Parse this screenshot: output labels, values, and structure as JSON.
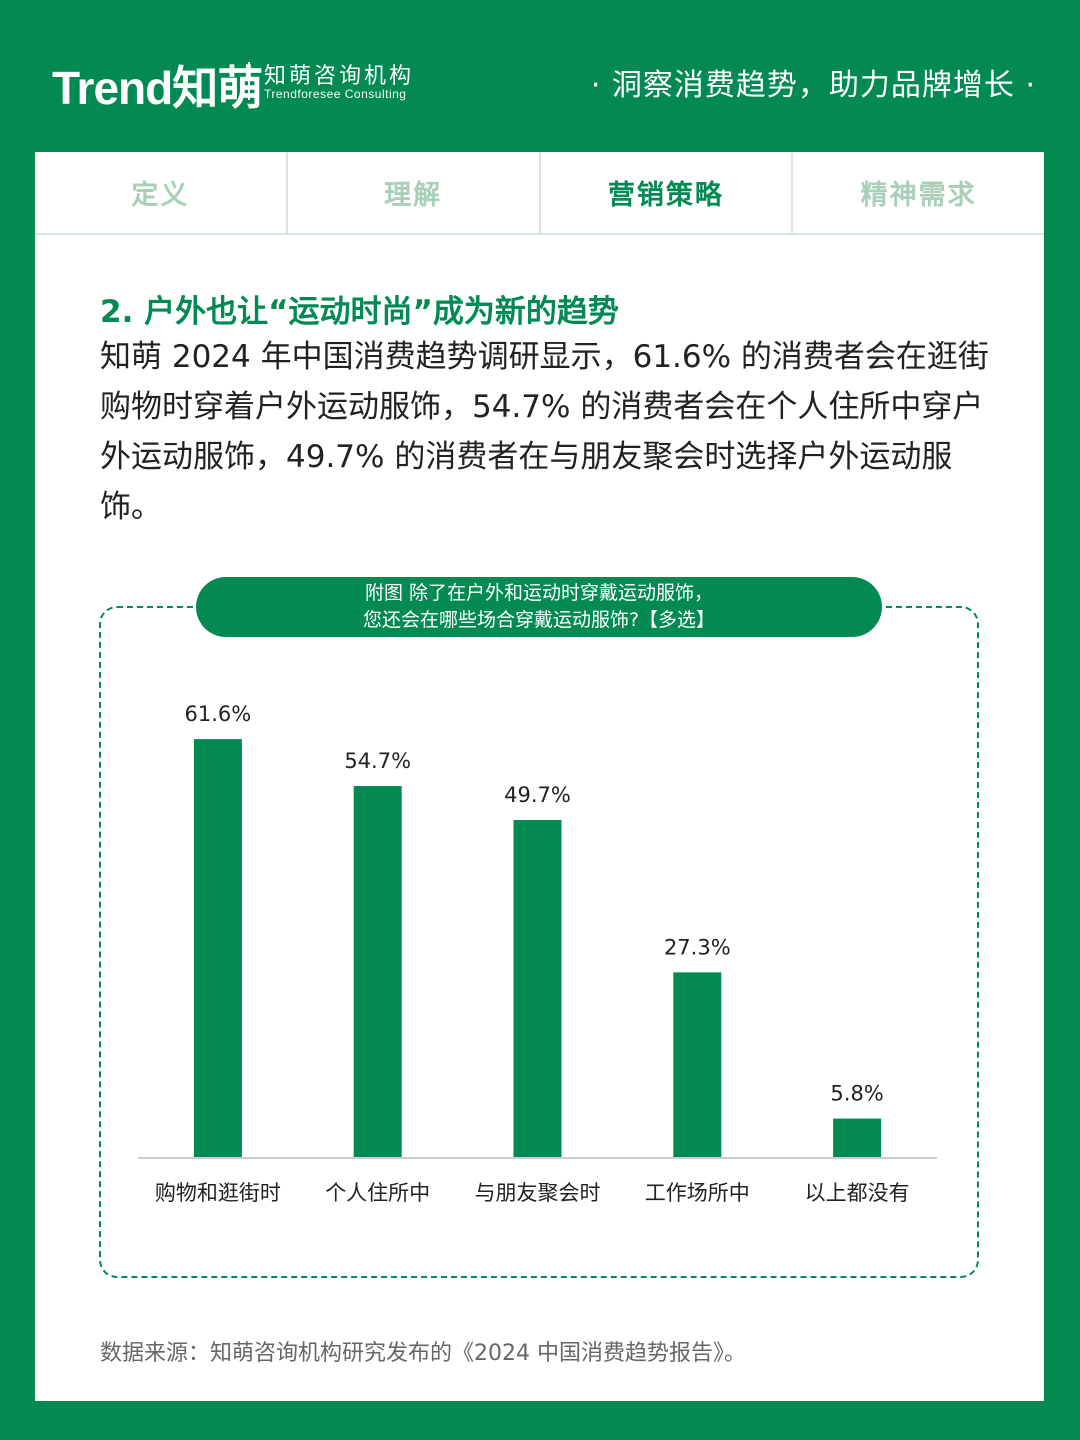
{
  "header": {
    "logo_word": "Trend",
    "logo_cn": "知萌",
    "org_name": "知萌咨询机构",
    "org_name_en": "Trendforesee Consulting",
    "slogan": "· 洞察消费趋势，助力品牌增长 ·"
  },
  "tabs": [
    {
      "label": "定义",
      "active": false
    },
    {
      "label": "理解",
      "active": false
    },
    {
      "label": "营销策略",
      "active": true
    },
    {
      "label": "精神需求",
      "active": false
    }
  ],
  "section": {
    "title": "2. 户外也让“运动时尚”成为新的趋势",
    "paragraph": "知萌 2024 年中国消费趋势调研显示，61.6% 的消费者会在逛街购物时穿着户外运动服饰，54.7% 的消费者会在个人住所中穿户外运动服饰，49.7% 的消费者在与朋友聚会时选择户外运动服饰。"
  },
  "colors": {
    "brand": "#028a52",
    "bar": "#028a52",
    "text": "#222222"
  },
  "chart_data": {
    "type": "bar",
    "title_line1": "附图 除了在户外和运动时穿戴运动服饰，",
    "title_line2": "您还会在哪些场合穿戴运动服饰?【多选】",
    "categories": [
      "购物和逛街时",
      "个人住所中",
      "与朋友聚会时",
      "工作场所中",
      "以上都没有"
    ],
    "values": [
      61.6,
      54.7,
      49.7,
      27.3,
      5.8
    ],
    "value_labels": [
      "61.6%",
      "54.7%",
      "49.7%",
      "27.3%",
      "5.8%"
    ],
    "unit": "%",
    "ylim": [
      0,
      70
    ],
    "grid": false,
    "legend": "none"
  },
  "footer": {
    "source": "数据来源：知萌咨询机构研究发布的《2024 中国消费趋势报告》。"
  }
}
